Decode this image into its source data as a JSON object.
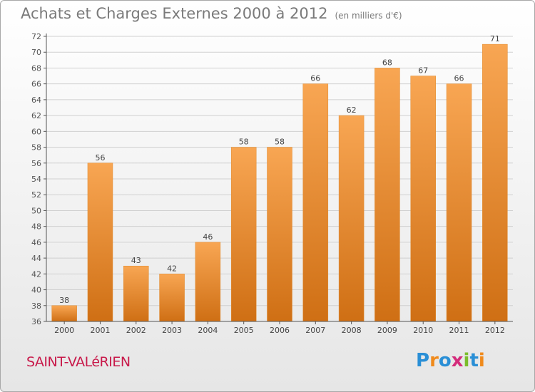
{
  "title": "Achats et Charges Externes 2000 à 2012",
  "unit_label": "(en milliers d'€)",
  "commune": "SAINT-VALéRIEN",
  "logo": {
    "text": "Proxiti",
    "letters": [
      {
        "ch": "P",
        "color": "#2a8fd6"
      },
      {
        "ch": "r",
        "color": "#f08a1c"
      },
      {
        "ch": "o",
        "color": "#2a8fd6"
      },
      {
        "ch": "x",
        "color": "#d42c7c"
      },
      {
        "ch": "i",
        "color": "#7bbd2c"
      },
      {
        "ch": "t",
        "color": "#2a8fd6"
      },
      {
        "ch": "i",
        "color": "#f08a1c"
      }
    ]
  },
  "colors": {
    "bar_top": "#f8a653",
    "bar_bottom": "#cf6f14",
    "axis": "#555555",
    "grid": "#d0d0d0"
  },
  "chart_data": {
    "type": "bar",
    "title": "Achats et Charges Externes 2000 à 2012",
    "categories": [
      "2000",
      "2001",
      "2002",
      "2003",
      "2004",
      "2005",
      "2006",
      "2007",
      "2008",
      "2009",
      "2010",
      "2011",
      "2012"
    ],
    "values": [
      38,
      56,
      43,
      42,
      46,
      58,
      58,
      66,
      62,
      68,
      67,
      66,
      71
    ],
    "ylim": [
      36,
      72
    ],
    "yticks": [
      36,
      38,
      40,
      42,
      44,
      46,
      48,
      50,
      52,
      54,
      56,
      58,
      60,
      62,
      64,
      66,
      68,
      70,
      72
    ],
    "grid": true,
    "xlabel": "",
    "ylabel": ""
  }
}
